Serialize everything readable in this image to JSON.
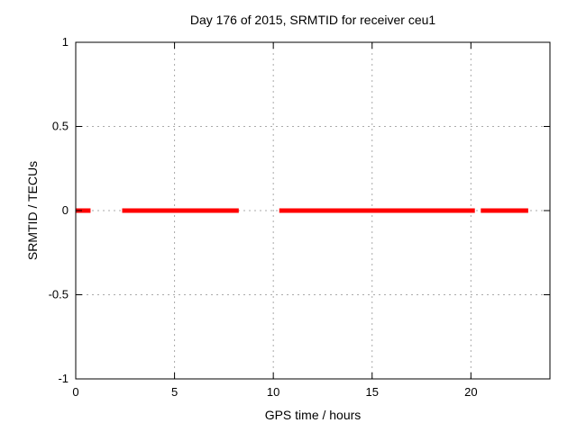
{
  "chart_data": {
    "type": "line",
    "title": "Day 176 of 2015, SRMTID for receiver ceu1",
    "xlabel": "GPS time / hours",
    "ylabel": "SRMTID / TECUs",
    "xlim": [
      0,
      24
    ],
    "ylim": [
      -1,
      1
    ],
    "xticks": [
      0,
      5,
      10,
      15,
      20
    ],
    "yticks": [
      -1,
      -0.5,
      0,
      0.5,
      1
    ],
    "grid": true,
    "legend_position": "none",
    "series": [
      {
        "name": "SRMTID",
        "color": "#ff0000",
        "line_width": 5,
        "y_value": 0,
        "segments_hours": [
          [
            0.0,
            0.75
          ],
          [
            2.35,
            8.25
          ],
          [
            10.3,
            20.2
          ],
          [
            20.5,
            22.9
          ]
        ]
      }
    ]
  },
  "colors": {
    "background": "#ffffff",
    "axis": "#000000",
    "grid": "#aaaaaa",
    "series": "#ff0000",
    "text": "#000000"
  }
}
